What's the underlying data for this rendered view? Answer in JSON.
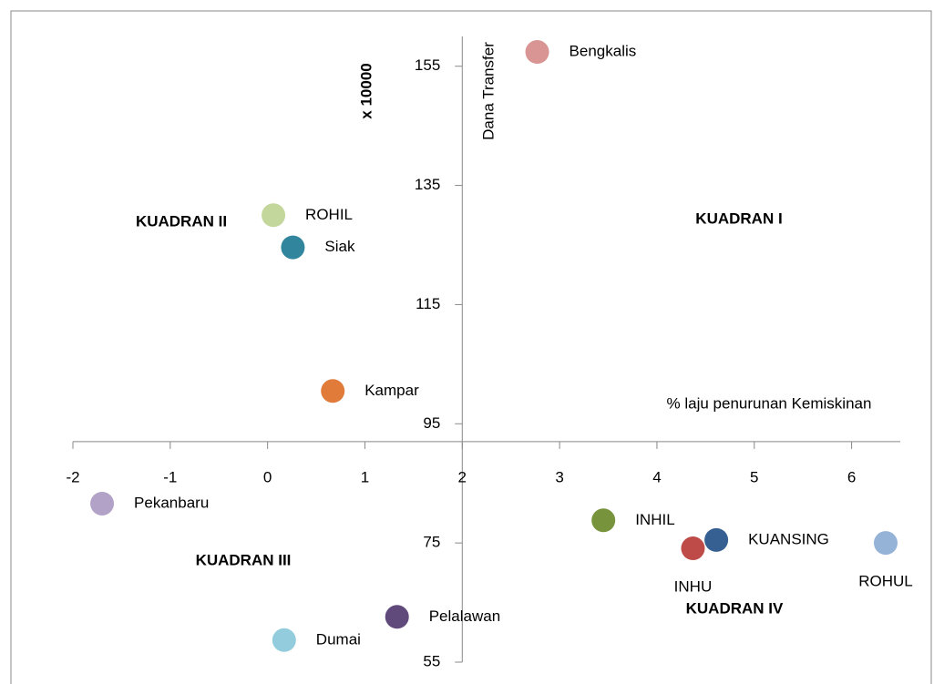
{
  "chart_data": {
    "type": "scatter",
    "x_axis_title": "% laju penurunan Kemiskinan",
    "y_axis_title": "Dana Transfer",
    "y_unit_label": "x 10000",
    "quadrant_labels": [
      "KUADRAN I",
      "KUADRAN II",
      "KUADRAN III",
      "KUADRAN IV"
    ],
    "points": [
      {
        "name": "Bengkalis",
        "x": 2.77,
        "y": 157.4,
        "color": "#d99594"
      },
      {
        "name": "ROHIL",
        "x": 0.06,
        "y": 130.0,
        "color": "#c3d69b"
      },
      {
        "name": "Siak",
        "x": 0.26,
        "y": 124.6,
        "color": "#31859c"
      },
      {
        "name": "Kampar",
        "x": 0.67,
        "y": 100.5,
        "color": "#e07b39"
      },
      {
        "name": "Pekanbaru",
        "x": -1.7,
        "y": 81.6,
        "color": "#b3a2c7"
      },
      {
        "name": "INHIL",
        "x": 3.45,
        "y": 78.8,
        "color": "#77933c"
      },
      {
        "name": "KUANSING",
        "x": 4.61,
        "y": 75.5,
        "color": "#366092"
      },
      {
        "name": "INHU",
        "x": 4.37,
        "y": 74.1,
        "color": "#be4b48"
      },
      {
        "name": "ROHUL",
        "x": 6.35,
        "y": 75.0,
        "color": "#95b3d7"
      },
      {
        "name": "Pelalawan",
        "x": 1.33,
        "y": 62.6,
        "color": "#604a7b"
      },
      {
        "name": "Dumai",
        "x": 0.17,
        "y": 58.7,
        "color": "#93cddd"
      }
    ],
    "xlim": [
      -2,
      6.5
    ],
    "ylim": [
      55,
      160
    ],
    "xticks": [
      -2,
      -1,
      0,
      1,
      2,
      3,
      4,
      5,
      6
    ],
    "yticks": [
      55,
      75,
      95,
      115,
      135,
      155
    ],
    "x_axis_crossing": 92,
    "y_axis_crossing": 2
  }
}
